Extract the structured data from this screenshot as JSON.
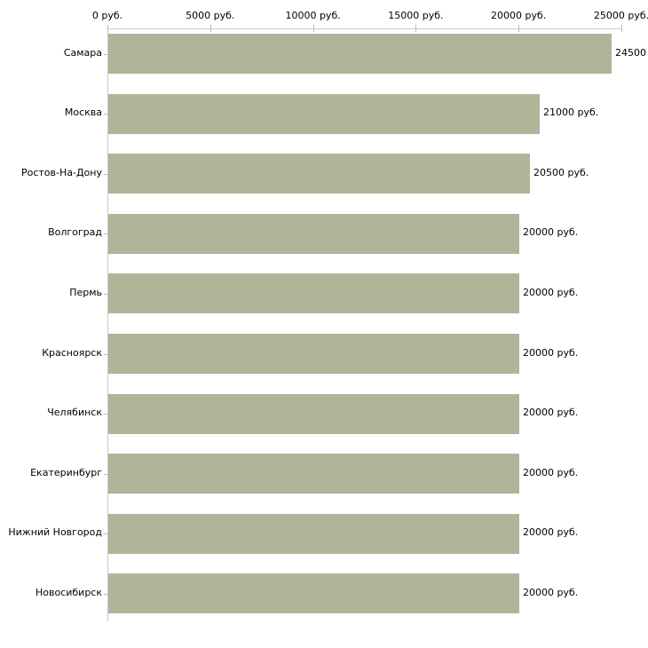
{
  "chart_data": {
    "type": "bar",
    "orientation": "horizontal",
    "title": "",
    "xlabel": "",
    "ylabel": "",
    "unit": "руб.",
    "categories": [
      "Самара",
      "Москва",
      "Ростов-На-Дону",
      "Волгоград",
      "Пермь",
      "Красноярск",
      "Челябинск",
      "Екатеринбург",
      "Нижний Новгород",
      "Новосибирск"
    ],
    "values": [
      24500,
      21000,
      20500,
      20000,
      20000,
      20000,
      20000,
      20000,
      20000,
      20000
    ],
    "value_labels": [
      "24500",
      "21000 руб.",
      "20500 руб.",
      "20000 руб.",
      "20000 руб.",
      "20000 руб.",
      "20000 руб.",
      "20000 руб.",
      "20000 руб.",
      "20000 руб."
    ],
    "x_ticks": [
      {
        "value": 0,
        "label": "0 руб."
      },
      {
        "value": 5000,
        "label": "5000 руб."
      },
      {
        "value": 10000,
        "label": "10000 руб."
      },
      {
        "value": 15000,
        "label": "15000 руб."
      },
      {
        "value": 20000,
        "label": "20000 руб."
      },
      {
        "value": 25000,
        "label": "25000 руб."
      }
    ],
    "xlim": [
      0,
      25000
    ],
    "grid": false,
    "legend": false,
    "axis_position": "top",
    "bar_color": "#afb598",
    "tick_color": "#bcbf94",
    "axis_line_color": "#c9c9c9",
    "text_color": "#000000",
    "background_color": "#ffffff"
  }
}
